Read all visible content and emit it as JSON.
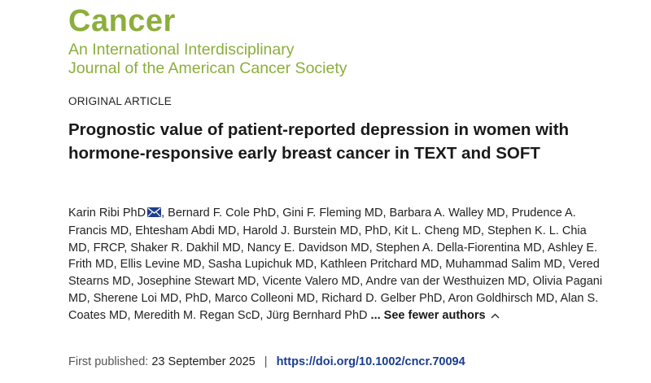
{
  "journal": {
    "name": "Cancer",
    "subtitle_lines": [
      "An International Interdisciplinary",
      "Journal of the American Cancer Society"
    ],
    "brand_color": "#8cae3c"
  },
  "article": {
    "type": "ORIGINAL ARTICLE",
    "title": "Prognostic value of patient-reported depression in women with hormone-responsive early breast cancer in TEXT and SOFT",
    "authors": [
      "Karin Ribi PhD",
      "Bernard F. Cole PhD",
      "Gini F. Fleming MD",
      "Barbara A. Walley MD",
      "Prudence A. Francis MD",
      "Ehtesham Abdi MD",
      "Harold J. Burstein MD, PhD",
      "Kit L. Cheng MD",
      "Stephen K. L. Chia MD, FRCP",
      "Shaker R. Dakhil MD",
      "Nancy E. Davidson MD",
      "Stephen A. Della-Fiorentina MD",
      "Ashley E. Frith MD",
      "Ellis Levine MD",
      "Sasha Lupichuk MD",
      "Kathleen Pritchard MD",
      "Muhammad Salim MD",
      "Vered Stearns MD",
      "Josephine Stewart MD",
      "Vicente Valero MD",
      "Andre van der Westhuizen MD",
      "Olivia Pagani MD",
      "Sherene Loi MD, PhD",
      "Marco Colleoni MD",
      "Richard D. Gelber PhD",
      "Aron Goldhirsch MD",
      "Alan S. Coates MD",
      "Meredith M. Regan ScD",
      "Jürg Bernhard PhD"
    ],
    "corresponding_icon": "mail-icon",
    "toggle_label": "... See fewer authors",
    "toggle_icon": "chevron-up-icon",
    "published_label": "First published:",
    "published_date": "23 September 2025",
    "separator": "|",
    "doi": "https://doi.org/10.1002/cncr.70094",
    "doi_color": "#1a3d8f"
  }
}
